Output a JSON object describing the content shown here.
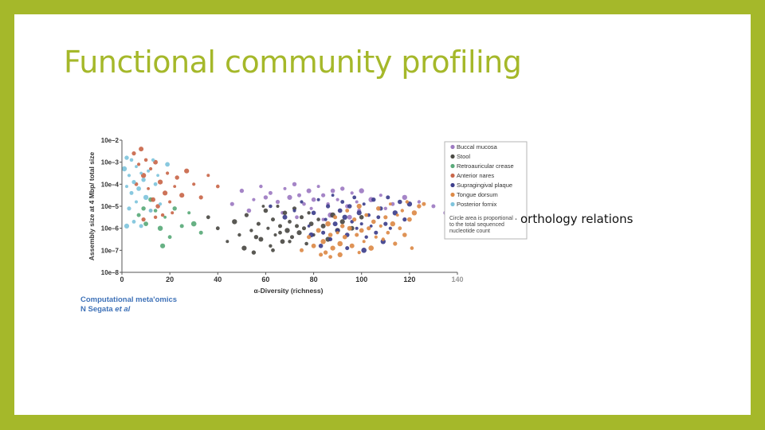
{
  "slide": {
    "title": "Functional community profiling",
    "body_text": "orthology relations",
    "caption_line1": "Computational meta'omics",
    "caption_line2_prefix": "N Segata ",
    "caption_line2_suffix": "et al",
    "colors": {
      "frame": "#a5b82a",
      "title": "#a5b82a",
      "caption": "#3f72b8"
    }
  },
  "chart_data": {
    "type": "scatter",
    "xlabel": "α-Diversity (richness)",
    "ylabel": "Assembly size at 4 Mbp/ total size",
    "xlim": [
      0,
      140
    ],
    "xticks": [
      0,
      20,
      40,
      60,
      80,
      100,
      120,
      140
    ],
    "ylim": [
      -8,
      -2
    ],
    "ytick_values": [
      -2,
      -3,
      -4,
      -5,
      -6,
      -7,
      -8
    ],
    "ytick_labels": [
      "10e–2",
      "10e–3",
      "10e–4",
      "10e–5",
      "10e–6",
      "10e–7",
      "10e–8"
    ],
    "legend_position": "top-right",
    "legend_note": "Circle area is proportional to the total sequenced nucleotide count",
    "series": [
      {
        "name": "Buccal mucosa",
        "color": "#9d7bc2",
        "points": [
          [
            46,
            -4.9
          ],
          [
            50,
            -4.3
          ],
          [
            55,
            -4.7
          ],
          [
            58,
            -4.1
          ],
          [
            62,
            -4.4
          ],
          [
            65,
            -4.8
          ],
          [
            68,
            -4.2
          ],
          [
            70,
            -4.6
          ],
          [
            72,
            -4.0
          ],
          [
            74,
            -4.5
          ],
          [
            76,
            -4.9
          ],
          [
            78,
            -4.3
          ],
          [
            80,
            -4.7
          ],
          [
            82,
            -4.1
          ],
          [
            84,
            -4.5
          ],
          [
            86,
            -4.9
          ],
          [
            88,
            -4.3
          ],
          [
            90,
            -4.7
          ],
          [
            92,
            -4.2
          ],
          [
            94,
            -5.0
          ],
          [
            96,
            -4.4
          ],
          [
            98,
            -4.8
          ],
          [
            100,
            -4.3
          ],
          [
            104,
            -4.7
          ],
          [
            108,
            -4.5
          ],
          [
            113,
            -4.9
          ],
          [
            118,
            -4.6
          ],
          [
            124,
            -4.8
          ],
          [
            130,
            -5.0
          ],
          [
            135,
            -5.3
          ],
          [
            53,
            -5.2
          ],
          [
            67,
            -5.3
          ],
          [
            79,
            -5.1
          ],
          [
            87,
            -5.4
          ],
          [
            99,
            -5.2
          ],
          [
            110,
            -5.1
          ],
          [
            60,
            -4.6
          ],
          [
            73,
            -5.5
          ],
          [
            84,
            -5.6
          ],
          [
            95,
            -5.5
          ]
        ]
      },
      {
        "name": "Stool",
        "color": "#4b4a44",
        "points": [
          [
            36,
            -5.5
          ],
          [
            40,
            -6.0
          ],
          [
            44,
            -6.6
          ],
          [
            47,
            -5.7
          ],
          [
            49,
            -6.3
          ],
          [
            51,
            -6.9
          ],
          [
            52,
            -5.4
          ],
          [
            54,
            -6.1
          ],
          [
            55,
            -7.1
          ],
          [
            57,
            -5.8
          ],
          [
            58,
            -6.5
          ],
          [
            60,
            -5.2
          ],
          [
            61,
            -6.0
          ],
          [
            62,
            -6.8
          ],
          [
            63,
            -5.6
          ],
          [
            64,
            -6.3
          ],
          [
            65,
            -5.0
          ],
          [
            66,
            -5.9
          ],
          [
            67,
            -6.6
          ],
          [
            68,
            -5.3
          ],
          [
            69,
            -6.1
          ],
          [
            70,
            -5.7
          ],
          [
            71,
            -6.4
          ],
          [
            72,
            -5.1
          ],
          [
            73,
            -5.9
          ],
          [
            74,
            -6.2
          ],
          [
            75,
            -5.5
          ],
          [
            76,
            -6.0
          ],
          [
            77,
            -6.7
          ],
          [
            78,
            -5.3
          ],
          [
            79,
            -5.8
          ],
          [
            80,
            -6.3
          ],
          [
            82,
            -5.6
          ],
          [
            84,
            -5.9
          ],
          [
            86,
            -6.5
          ],
          [
            88,
            -5.4
          ],
          [
            90,
            -6.1
          ],
          [
            92,
            -5.7
          ],
          [
            96,
            -6.0
          ],
          [
            100,
            -5.5
          ],
          [
            56,
            -6.4
          ],
          [
            59,
            -5.0
          ],
          [
            63,
            -7.0
          ],
          [
            66,
            -6.2
          ],
          [
            70,
            -6.6
          ]
        ]
      },
      {
        "name": "Retroauricular crease",
        "color": "#5aaa7a",
        "points": [
          [
            7,
            -5.4
          ],
          [
            10,
            -5.8
          ],
          [
            12,
            -4.7
          ],
          [
            14,
            -5.2
          ],
          [
            16,
            -6.0
          ],
          [
            18,
            -5.5
          ],
          [
            20,
            -6.4
          ],
          [
            22,
            -5.1
          ],
          [
            25,
            -5.9
          ],
          [
            28,
            -5.3
          ],
          [
            30,
            -5.8
          ],
          [
            33,
            -6.2
          ],
          [
            17,
            -6.8
          ],
          [
            9,
            -5.1
          ]
        ]
      },
      {
        "name": "Anterior nares",
        "color": "#c9674a",
        "points": [
          [
            5,
            -2.6
          ],
          [
            7,
            -3.1
          ],
          [
            8,
            -2.4
          ],
          [
            9,
            -3.6
          ],
          [
            10,
            -2.9
          ],
          [
            11,
            -4.2
          ],
          [
            12,
            -3.3
          ],
          [
            13,
            -4.7
          ],
          [
            14,
            -3.0
          ],
          [
            15,
            -5.0
          ],
          [
            16,
            -3.9
          ],
          [
            17,
            -5.4
          ],
          [
            18,
            -4.4
          ],
          [
            19,
            -3.5
          ],
          [
            20,
            -4.8
          ],
          [
            21,
            -5.3
          ],
          [
            22,
            -4.1
          ],
          [
            23,
            -3.7
          ],
          [
            25,
            -4.5
          ],
          [
            27,
            -3.4
          ],
          [
            30,
            -4.0
          ],
          [
            33,
            -4.6
          ],
          [
            36,
            -3.6
          ],
          [
            40,
            -4.1
          ],
          [
            9,
            -5.6
          ],
          [
            12,
            -5.2
          ],
          [
            6,
            -4.0
          ],
          [
            14,
            -5.5
          ]
        ]
      },
      {
        "name": "Supragingival plaque",
        "color": "#3d3f8c",
        "points": [
          [
            62,
            -5.0
          ],
          [
            68,
            -5.5
          ],
          [
            72,
            -5.2
          ],
          [
            75,
            -4.8
          ],
          [
            78,
            -5.9
          ],
          [
            80,
            -5.3
          ],
          [
            82,
            -4.7
          ],
          [
            84,
            -6.2
          ],
          [
            85,
            -5.6
          ],
          [
            86,
            -5.0
          ],
          [
            87,
            -6.5
          ],
          [
            88,
            -4.5
          ],
          [
            89,
            -5.8
          ],
          [
            90,
            -6.1
          ],
          [
            91,
            -5.2
          ],
          [
            92,
            -4.8
          ],
          [
            93,
            -5.5
          ],
          [
            94,
            -6.3
          ],
          [
            95,
            -5.0
          ],
          [
            96,
            -5.7
          ],
          [
            97,
            -4.6
          ],
          [
            98,
            -6.0
          ],
          [
            99,
            -5.3
          ],
          [
            100,
            -5.8
          ],
          [
            101,
            -4.9
          ],
          [
            102,
            -6.4
          ],
          [
            103,
            -5.4
          ],
          [
            104,
            -5.9
          ],
          [
            105,
            -4.7
          ],
          [
            106,
            -6.2
          ],
          [
            107,
            -5.5
          ],
          [
            108,
            -5.1
          ],
          [
            109,
            -6.6
          ],
          [
            110,
            -5.8
          ],
          [
            111,
            -4.6
          ],
          [
            112,
            -6.0
          ],
          [
            114,
            -5.3
          ],
          [
            116,
            -4.8
          ],
          [
            118,
            -5.6
          ],
          [
            120,
            -4.9
          ],
          [
            83,
            -6.8
          ],
          [
            94,
            -6.9
          ],
          [
            101,
            -7.0
          ],
          [
            79,
            -6.3
          ]
        ]
      },
      {
        "name": "Tongue dorsum",
        "color": "#dc8a48",
        "points": [
          [
            75,
            -7.0
          ],
          [
            78,
            -6.4
          ],
          [
            80,
            -6.8
          ],
          [
            82,
            -6.1
          ],
          [
            84,
            -6.6
          ],
          [
            85,
            -7.1
          ],
          [
            86,
            -5.8
          ],
          [
            87,
            -6.3
          ],
          [
            88,
            -6.9
          ],
          [
            89,
            -5.5
          ],
          [
            90,
            -6.2
          ],
          [
            91,
            -6.7
          ],
          [
            92,
            -5.9
          ],
          [
            93,
            -6.4
          ],
          [
            94,
            -5.2
          ],
          [
            95,
            -6.0
          ],
          [
            96,
            -6.8
          ],
          [
            97,
            -5.6
          ],
          [
            98,
            -6.3
          ],
          [
            99,
            -5.0
          ],
          [
            100,
            -6.1
          ],
          [
            101,
            -6.6
          ],
          [
            102,
            -5.4
          ],
          [
            103,
            -6.0
          ],
          [
            104,
            -6.9
          ],
          [
            105,
            -5.7
          ],
          [
            106,
            -6.4
          ],
          [
            107,
            -5.1
          ],
          [
            108,
            -5.9
          ],
          [
            109,
            -6.5
          ],
          [
            110,
            -5.5
          ],
          [
            111,
            -6.2
          ],
          [
            112,
            -4.9
          ],
          [
            113,
            -5.8
          ],
          [
            114,
            -6.7
          ],
          [
            115,
            -5.4
          ],
          [
            116,
            -6.0
          ],
          [
            117,
            -5.2
          ],
          [
            118,
            -6.3
          ],
          [
            119,
            -4.8
          ],
          [
            120,
            -5.6
          ],
          [
            121,
            -6.9
          ],
          [
            122,
            -5.3
          ],
          [
            124,
            -5.0
          ],
          [
            126,
            -4.9
          ],
          [
            91,
            -7.2
          ],
          [
            99,
            -7.1
          ],
          [
            87,
            -7.3
          ],
          [
            83,
            -7.2
          ]
        ]
      },
      {
        "name": "Posterior fornix",
        "color": "#7fc4dc",
        "points": [
          [
            1,
            -3.3
          ],
          [
            2,
            -2.8
          ],
          [
            2,
            -4.1
          ],
          [
            3,
            -3.6
          ],
          [
            3,
            -5.1
          ],
          [
            4,
            -2.9
          ],
          [
            4,
            -4.4
          ],
          [
            5,
            -3.9
          ],
          [
            5,
            -5.7
          ],
          [
            6,
            -3.2
          ],
          [
            6,
            -4.8
          ],
          [
            7,
            -4.2
          ],
          [
            8,
            -5.9
          ],
          [
            9,
            -3.8
          ],
          [
            10,
            -4.6
          ],
          [
            11,
            -3.4
          ],
          [
            12,
            -5.2
          ],
          [
            13,
            -2.9
          ],
          [
            14,
            -4.0
          ],
          [
            15,
            -3.6
          ],
          [
            16,
            -4.9
          ],
          [
            19,
            -3.1
          ],
          [
            2,
            -5.9
          ],
          [
            8,
            -3.5
          ]
        ]
      }
    ]
  }
}
